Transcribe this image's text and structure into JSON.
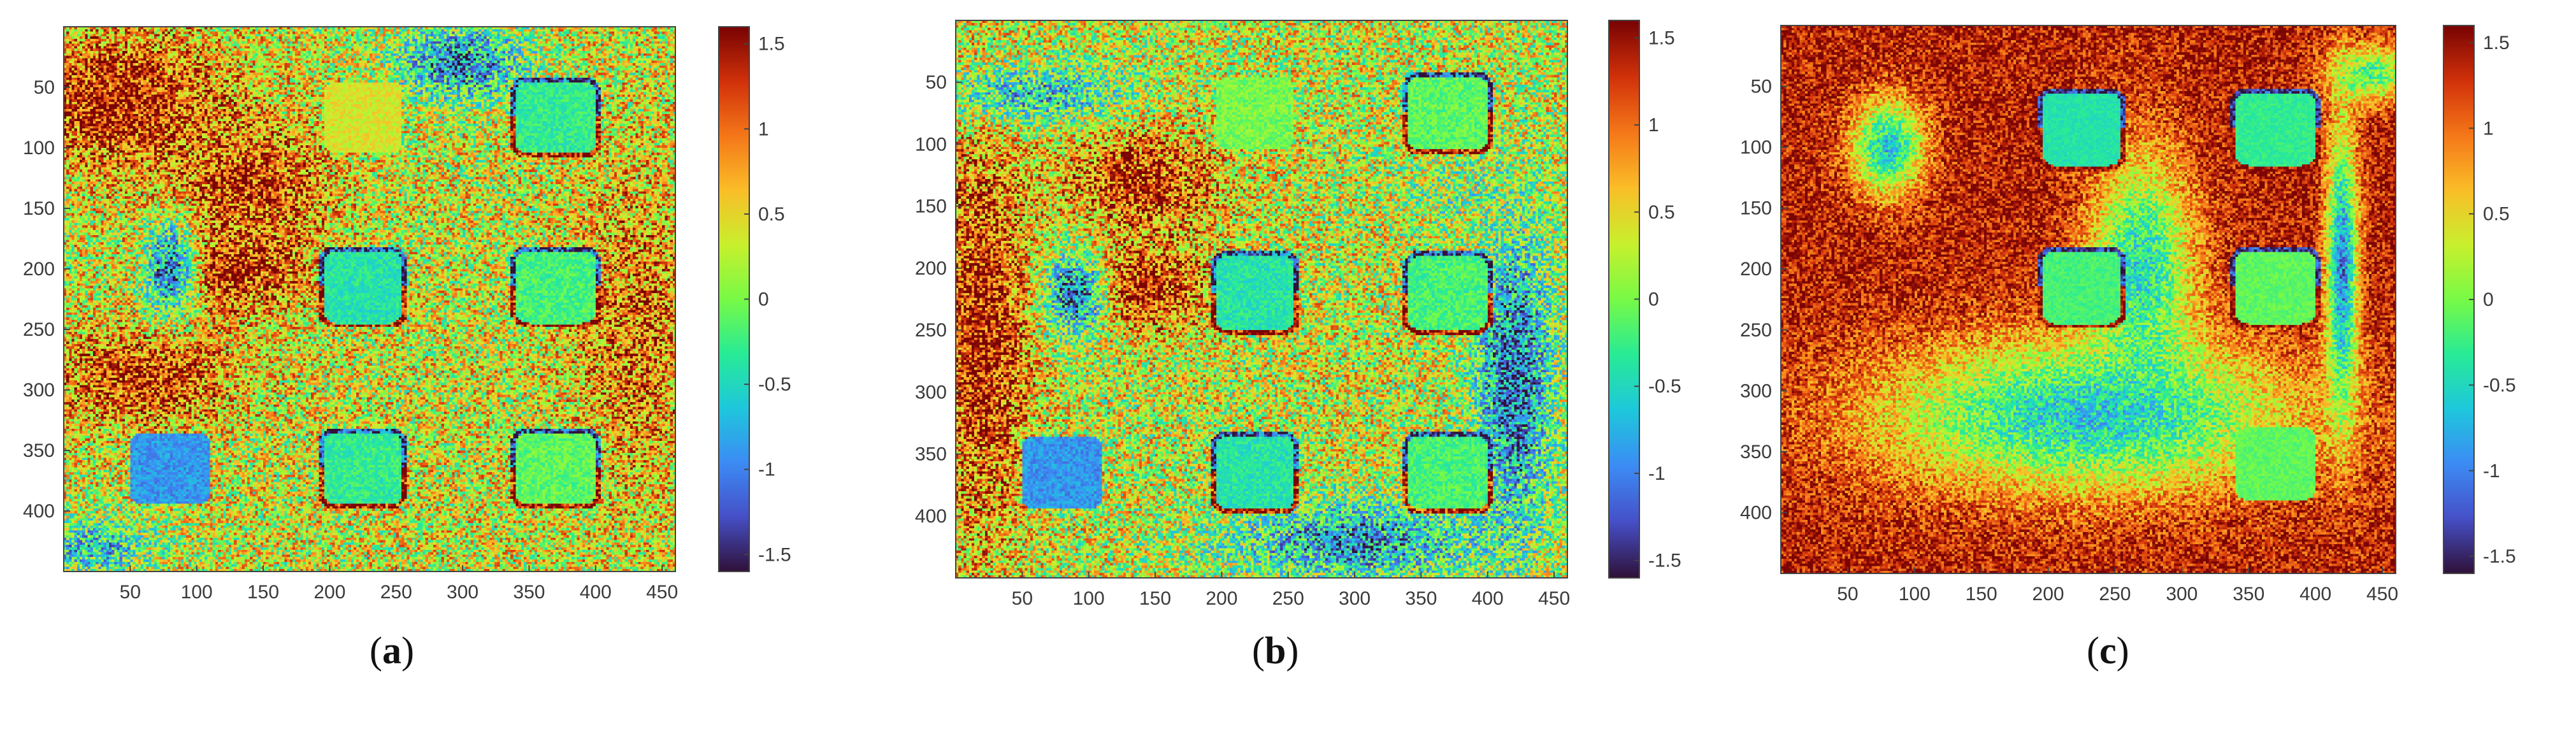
{
  "chart_data": [
    {
      "type": "heatmap",
      "panel_label": "a",
      "x_ticks": [
        50,
        100,
        150,
        200,
        250,
        300,
        350,
        400,
        450
      ],
      "y_ticks": [
        50,
        100,
        150,
        200,
        250,
        300,
        350,
        400
      ],
      "xlim": [
        0,
        460
      ],
      "ylim": [
        0,
        450
      ],
      "y_reversed": true,
      "colorbar": {
        "ticks": [
          "1.5",
          "1",
          "0.5",
          "0",
          "-0.5",
          "-1",
          "-1.5"
        ],
        "range": [
          -1.6,
          1.6
        ],
        "colormap": "turbo"
      },
      "background_value": 0.35,
      "noise": 0.9,
      "squares": [
        {
          "cx": 225,
          "cy": 75,
          "value": 0.4,
          "outline": false
        },
        {
          "cx": 370,
          "cy": 75,
          "value": -0.3,
          "outline": true
        },
        {
          "cx": 225,
          "cy": 215,
          "value": -0.4,
          "outline": true
        },
        {
          "cx": 370,
          "cy": 215,
          "value": -0.2,
          "outline": true
        },
        {
          "cx": 225,
          "cy": 365,
          "value": -0.3,
          "outline": true
        },
        {
          "cx": 370,
          "cy": 365,
          "value": -0.1,
          "outline": true
        },
        {
          "cx": 80,
          "cy": 365,
          "value": -0.9,
          "outline": false
        }
      ],
      "blobs": [
        {
          "cx": 140,
          "cy": 130,
          "rx": 75,
          "ry": 60,
          "value": 1.3
        },
        {
          "cx": 130,
          "cy": 200,
          "rx": 70,
          "ry": 45,
          "value": 1.4
        },
        {
          "cx": 40,
          "cy": 60,
          "rx": 100,
          "ry": 70,
          "value": 1.5
        },
        {
          "cx": 60,
          "cy": 290,
          "rx": 90,
          "ry": 50,
          "value": 1.3
        },
        {
          "cx": 430,
          "cy": 250,
          "rx": 60,
          "ry": 160,
          "value": 1.0
        },
        {
          "cx": 80,
          "cy": 200,
          "rx": 25,
          "ry": 50,
          "value": -1.1
        },
        {
          "cx": 300,
          "cy": 30,
          "rx": 60,
          "ry": 40,
          "value": -1.0
        },
        {
          "cx": 300,
          "cy": 350,
          "rx": 80,
          "ry": 60,
          "value": 0.4
        },
        {
          "cx": 20,
          "cy": 430,
          "rx": 60,
          "ry": 30,
          "value": -0.6
        }
      ]
    },
    {
      "type": "heatmap",
      "panel_label": "b",
      "x_ticks": [
        50,
        100,
        150,
        200,
        250,
        300,
        350,
        400,
        450
      ],
      "y_ticks": [
        50,
        100,
        150,
        200,
        250,
        300,
        350,
        400
      ],
      "xlim": [
        0,
        460
      ],
      "ylim": [
        0,
        450
      ],
      "y_reversed": true,
      "colorbar": {
        "ticks": [
          "1.5",
          "1",
          "0.5",
          "0",
          "-0.5",
          "-1",
          "-1.5"
        ],
        "range": [
          -1.6,
          1.6
        ],
        "colormap": "turbo"
      },
      "background_value": 0.3,
      "noise": 0.9,
      "squares": [
        {
          "cx": 225,
          "cy": 75,
          "value": 0.0,
          "outline": false
        },
        {
          "cx": 370,
          "cy": 75,
          "value": -0.1,
          "outline": true
        },
        {
          "cx": 225,
          "cy": 220,
          "value": -0.4,
          "outline": true
        },
        {
          "cx": 370,
          "cy": 220,
          "value": -0.2,
          "outline": true
        },
        {
          "cx": 225,
          "cy": 365,
          "value": -0.4,
          "outline": true
        },
        {
          "cx": 370,
          "cy": 365,
          "value": -0.2,
          "outline": true
        },
        {
          "cx": 80,
          "cy": 365,
          "value": -0.9,
          "outline": false
        }
      ],
      "blobs": [
        {
          "cx": 140,
          "cy": 130,
          "rx": 75,
          "ry": 55,
          "value": 1.3
        },
        {
          "cx": 140,
          "cy": 215,
          "rx": 65,
          "ry": 45,
          "value": 1.4
        },
        {
          "cx": 20,
          "cy": 250,
          "rx": 45,
          "ry": 200,
          "value": 1.5
        },
        {
          "cx": 60,
          "cy": 60,
          "rx": 90,
          "ry": 30,
          "value": -0.6
        },
        {
          "cx": 90,
          "cy": 220,
          "rx": 30,
          "ry": 45,
          "value": -1.1
        },
        {
          "cx": 420,
          "cy": 290,
          "rx": 35,
          "ry": 150,
          "value": -1.2
        },
        {
          "cx": 380,
          "cy": 140,
          "rx": 60,
          "ry": 40,
          "value": 0.0
        },
        {
          "cx": 300,
          "cy": 420,
          "rx": 120,
          "ry": 40,
          "value": -0.9
        }
      ]
    },
    {
      "type": "heatmap",
      "panel_label": "c",
      "x_ticks": [
        50,
        100,
        150,
        200,
        250,
        300,
        350,
        400,
        450
      ],
      "y_ticks": [
        50,
        100,
        150,
        200,
        250,
        300,
        350,
        400
      ],
      "xlim": [
        0,
        460
      ],
      "ylim": [
        0,
        450
      ],
      "y_reversed": true,
      "colorbar": {
        "ticks": [
          "1.5",
          "1",
          "0.5",
          "0",
          "-0.5",
          "-1",
          "-1.5"
        ],
        "range": [
          -1.6,
          1.6
        ],
        "colormap": "turbo"
      },
      "background_value": 1.4,
      "noise": 0.5,
      "squares": [
        {
          "cx": 225,
          "cy": 85,
          "value": -0.4,
          "outline": true
        },
        {
          "cx": 370,
          "cy": 85,
          "value": -0.3,
          "outline": true
        },
        {
          "cx": 225,
          "cy": 215,
          "value": -0.2,
          "outline": true
        },
        {
          "cx": 370,
          "cy": 215,
          "value": -0.1,
          "outline": true
        },
        {
          "cx": 370,
          "cy": 360,
          "value": -0.1,
          "outline": false
        }
      ],
      "blobs": [
        {
          "cx": 230,
          "cy": 320,
          "rx": 200,
          "ry": 80,
          "value": -0.6
        },
        {
          "cx": 270,
          "cy": 200,
          "rx": 50,
          "ry": 120,
          "value": -0.5
        },
        {
          "cx": 80,
          "cy": 100,
          "rx": 35,
          "ry": 50,
          "value": -0.6
        },
        {
          "cx": 420,
          "cy": 200,
          "rx": 15,
          "ry": 150,
          "value": -1.0
        },
        {
          "cx": 440,
          "cy": 40,
          "rx": 40,
          "ry": 30,
          "value": -0.2
        }
      ]
    }
  ]
}
